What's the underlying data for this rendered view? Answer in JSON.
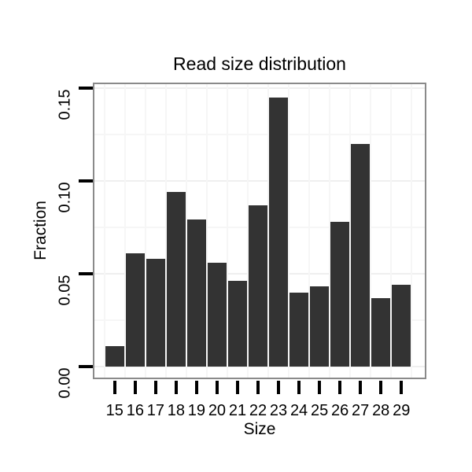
{
  "chart_data": {
    "type": "bar",
    "title": "Read size distribution",
    "xlabel": "Size",
    "ylabel": "Fraction",
    "categories": [
      "15",
      "16",
      "17",
      "18",
      "19",
      "20",
      "21",
      "22",
      "23",
      "24",
      "25",
      "26",
      "27",
      "28",
      "29"
    ],
    "values": [
      0.011,
      0.061,
      0.058,
      0.094,
      0.079,
      0.056,
      0.046,
      0.087,
      0.145,
      0.04,
      0.043,
      0.078,
      0.12,
      0.037,
      0.044
    ],
    "ylim": [
      0,
      0.155
    ],
    "yticks": [
      0,
      0.05,
      0.1,
      0.15
    ],
    "ytick_labels": [
      "0.00",
      "0.05",
      "0.10",
      "0.15"
    ],
    "yticks_minor": [
      0.025,
      0.075,
      0.125
    ],
    "grid": "major-and-minor",
    "legend_position": "none",
    "colors": {
      "bar": "#333333",
      "panel_border": "#8a8a8a",
      "grid_major": "#efefef",
      "grid_minor": "#f6f6f6",
      "axis_tick": "#000000",
      "background": "#ffffff"
    }
  }
}
